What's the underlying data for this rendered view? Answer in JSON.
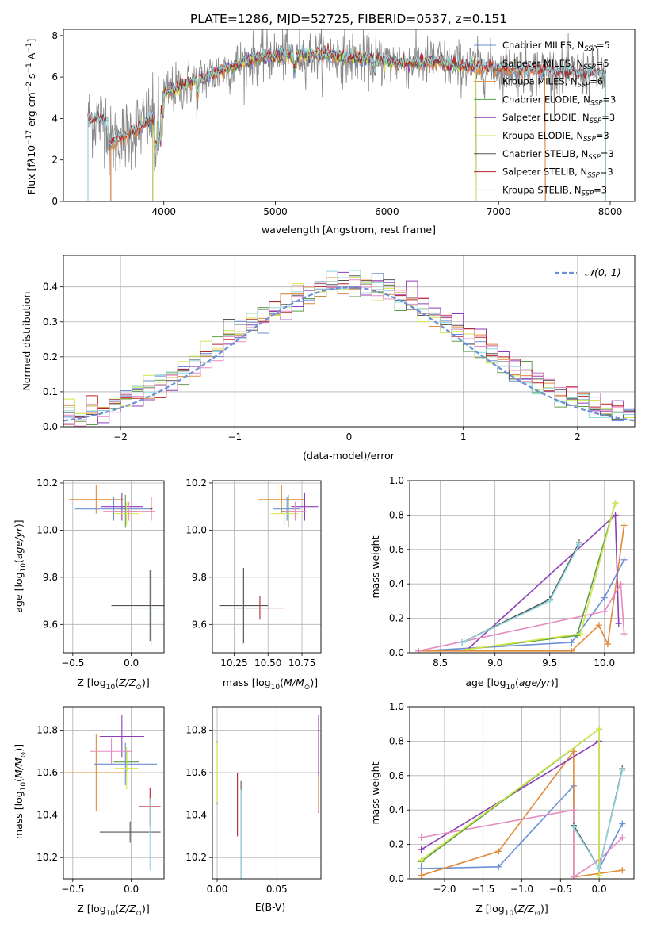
{
  "chart_data": [
    {
      "id": "spectrum",
      "type": "line",
      "title": "PLATE=1286, MJD=52725, FIBERID=0537, z=0.151",
      "xlabel": "wavelength [Angstrom, rest frame]",
      "ylabel": "Flux [f_λ 10^-17 erg cm^-2 s^-1 A^-1]",
      "xlim": [
        3100,
        8220
      ],
      "ylim": [
        0,
        8.3
      ],
      "xticks": [
        4000,
        5000,
        6000,
        7000,
        8000
      ],
      "yticks": [
        0,
        2,
        4,
        6,
        8
      ],
      "legend_position": "right",
      "series": [
        {
          "name": "Chabrier MILES, N_SSP=5",
          "color": "#6b8fd6",
          "start": 3525,
          "end": 7420
        },
        {
          "name": "Salpeter MILES, N_SSP=5",
          "color": "#e6845e",
          "start": 3525,
          "end": 7420
        },
        {
          "name": "Kroupa MILES, N_SSP=6",
          "color": "#e08a3a",
          "start": 3525,
          "end": 7420
        },
        {
          "name": "Chabrier ELODIE, N_SSP=3",
          "color": "#5a9e4a",
          "start": 3900,
          "end": 6800
        },
        {
          "name": "Salpeter ELODIE, N_SSP=3",
          "color": "#8e3fb6",
          "start": 3900,
          "end": 6800
        },
        {
          "name": "Kroupa ELODIE, N_SSP=3",
          "color": "#d2e64c",
          "start": 3900,
          "end": 6800
        },
        {
          "name": "Chabrier STELIB, N_SSP=3",
          "color": "#555555",
          "start": 3320,
          "end": 7960
        },
        {
          "name": "Salpeter STELIB, N_SSP=3",
          "color": "#b8232a",
          "start": 3320,
          "end": 7960
        },
        {
          "name": "Kroupa STELIB, N_SSP=3",
          "color": "#8fd8e0",
          "start": 3320,
          "end": 7960
        }
      ],
      "data_color": "#888888",
      "data_range": [
        3320,
        7960
      ]
    },
    {
      "id": "residuals",
      "type": "area",
      "ylabel": "Normed distribution",
      "xlabel": "(data-model)/error",
      "xlim": [
        -2.5,
        2.5
      ],
      "ylim": [
        0,
        0.49
      ],
      "xticks": [
        -2,
        -1,
        0,
        1,
        2
      ],
      "yticks": [
        0.0,
        0.1,
        0.2,
        0.3,
        0.4
      ],
      "grid": true,
      "legend": "N(0,1)",
      "legend_position": "top-right",
      "bin_width": 0.1,
      "histograms": [
        {
          "color": "#6b8fd6",
          "offset": 0.0
        },
        {
          "color": "#e08a3a",
          "offset": 0.05
        },
        {
          "color": "#5a9e4a",
          "offset": -0.03
        },
        {
          "color": "#8e3fb6",
          "offset": 0.08
        },
        {
          "color": "#d2e64c",
          "offset": -0.06
        },
        {
          "color": "#555555",
          "offset": 0.02
        },
        {
          "color": "#b8232a",
          "offset": 0.04
        },
        {
          "color": "#8fd8e0",
          "offset": -0.02
        },
        {
          "color": "#e68bc0",
          "offset": 0.06
        }
      ]
    },
    {
      "id": "z-age",
      "type": "scatter",
      "xlabel": "Z [log10(Z/Z⊙)]",
      "ylabel": "age  [log10(age/yr)]",
      "xlim": [
        -0.58,
        0.28
      ],
      "ylim": [
        9.48,
        10.21
      ],
      "xticks": [
        -0.5,
        0.0
      ],
      "xtick_labels": [
        "−0.5",
        "0.0"
      ],
      "yticks": [
        9.6,
        9.8,
        10.0,
        10.2
      ],
      "grid": true,
      "points": [
        {
          "x": -0.3,
          "y": 10.13,
          "xerr": 0.23,
          "yerr": 0.06,
          "color": "#e08a3a"
        },
        {
          "x": -0.15,
          "y": 10.09,
          "xerr": 0.33,
          "yerr": 0.05,
          "color": "#6b8fd6"
        },
        {
          "x": -0.08,
          "y": 10.1,
          "xerr": 0.18,
          "yerr": 0.06,
          "color": "#8e3fb6"
        },
        {
          "x": -0.05,
          "y": 10.08,
          "xerr": 0.1,
          "yerr": 0.07,
          "color": "#5a9e4a"
        },
        {
          "x": -0.04,
          "y": 10.07,
          "xerr": 0.11,
          "yerr": 0.05,
          "color": "#d2e64c"
        },
        {
          "x": -0.02,
          "y": 10.08,
          "xerr": 0.22,
          "yerr": 0.04,
          "color": "#e68bc0"
        },
        {
          "x": 0.17,
          "y": 10.09,
          "xerr": 0.01,
          "yerr": 0.05,
          "color": "#b8232a"
        },
        {
          "x": 0.16,
          "y": 9.68,
          "xerr": 0.33,
          "yerr": 0.15,
          "color": "#555555"
        },
        {
          "x": 0.17,
          "y": 9.67,
          "xerr": 0.32,
          "yerr": 0.16,
          "color": "#8fd8e0"
        }
      ]
    },
    {
      "id": "mass-age",
      "type": "scatter",
      "xlabel": "mass [log10(M/M⊙)]",
      "xlim": [
        10.09,
        10.89
      ],
      "ylim": [
        9.48,
        10.21
      ],
      "xticks": [
        10.25,
        10.5,
        10.75
      ],
      "xtick_labels": [
        "10.25",
        "10.50",
        "10.75"
      ],
      "yticks": [
        9.6,
        9.8,
        10.0,
        10.2
      ],
      "grid": true,
      "points": [
        {
          "x": 10.6,
          "y": 10.13,
          "xerr": 0.17,
          "yerr": 0.06,
          "color": "#e08a3a"
        },
        {
          "x": 10.64,
          "y": 10.09,
          "xerr": 0.1,
          "yerr": 0.05,
          "color": "#6b8fd6"
        },
        {
          "x": 10.77,
          "y": 10.1,
          "xerr": 0.1,
          "yerr": 0.06,
          "color": "#8e3fb6"
        },
        {
          "x": 10.65,
          "y": 10.08,
          "xerr": 0.05,
          "yerr": 0.07,
          "color": "#5a9e4a"
        },
        {
          "x": 10.62,
          "y": 10.07,
          "xerr": 0.1,
          "yerr": 0.05,
          "color": "#d2e64c"
        },
        {
          "x": 10.7,
          "y": 10.08,
          "xerr": 0.08,
          "yerr": 0.04,
          "color": "#e68bc0"
        },
        {
          "x": 10.44,
          "y": 9.67,
          "xerr": 0.18,
          "yerr": 0.05,
          "color": "#b8232a"
        },
        {
          "x": 10.32,
          "y": 9.68,
          "xerr": 0.18,
          "yerr": 0.16,
          "color": "#555555"
        },
        {
          "x": 10.31,
          "y": 9.67,
          "xerr": 0.17,
          "yerr": 0.16,
          "color": "#8fd8e0"
        }
      ]
    },
    {
      "id": "age-weight",
      "type": "line",
      "xlabel": "age  [log10(age/yr)]",
      "ylabel": "mass weight",
      "xlim": [
        8.22,
        10.27
      ],
      "ylim": [
        0,
        1.0
      ],
      "xticks": [
        8.5,
        9.0,
        9.5,
        10.0
      ],
      "yticks": [
        0.0,
        0.2,
        0.4,
        0.6,
        0.8,
        1.0
      ],
      "grid": true,
      "series": [
        {
          "color": "#6b8fd6",
          "x": [
            8.3,
            9.7,
            10.0,
            10.18
          ],
          "y": [
            0.01,
            0.06,
            0.32,
            0.54
          ]
        },
        {
          "color": "#e08a3a",
          "x": [
            8.3,
            9.7,
            9.95,
            10.03,
            10.18
          ],
          "y": [
            0.01,
            0.01,
            0.16,
            0.05,
            0.74
          ]
        },
        {
          "color": "#8e3fb6",
          "x": [
            8.75,
            10.1,
            10.13
          ],
          "y": [
            0.02,
            0.8,
            0.17
          ]
        },
        {
          "color": "#e68bc0",
          "x": [
            8.3,
            10.0,
            10.15,
            10.18
          ],
          "y": [
            0.01,
            0.24,
            0.4,
            0.11
          ]
        },
        {
          "color": "#5a9e4a",
          "x": [
            8.75,
            9.75,
            10.1
          ],
          "y": [
            0.02,
            0.1,
            0.87
          ]
        },
        {
          "color": "#d2e64c",
          "x": [
            8.75,
            9.78,
            10.1
          ],
          "y": [
            0.02,
            0.11,
            0.87
          ]
        },
        {
          "color": "#555555",
          "x": [
            8.7,
            9.5,
            9.77
          ],
          "y": [
            0.06,
            0.31,
            0.64
          ]
        },
        {
          "color": "#8fd8e0",
          "x": [
            8.7,
            9.5,
            9.77
          ],
          "y": [
            0.06,
            0.3,
            0.63
          ]
        }
      ]
    },
    {
      "id": "z-mass",
      "type": "scatter",
      "xlabel": "Z [log10(Z/Z⊙)]",
      "ylabel": "mass [log10(M/M⊙)]",
      "xlim": [
        -0.58,
        0.28
      ],
      "ylim": [
        10.1,
        10.91
      ],
      "xticks": [
        -0.5,
        0.0
      ],
      "xtick_labels": [
        "−0.5",
        "0.0"
      ],
      "yticks": [
        10.2,
        10.4,
        10.6,
        10.8
      ],
      "grid": true,
      "points": [
        {
          "x": -0.3,
          "y": 10.6,
          "xerr": 0.26,
          "yerr": 0.18,
          "color": "#e08a3a"
        },
        {
          "x": -0.05,
          "y": 10.64,
          "xerr": 0.27,
          "yerr": 0.1,
          "color": "#6b8fd6"
        },
        {
          "x": -0.08,
          "y": 10.77,
          "xerr": 0.19,
          "yerr": 0.1,
          "color": "#8e3fb6"
        },
        {
          "x": -0.04,
          "y": 10.65,
          "xerr": 0.11,
          "yerr": 0.05,
          "color": "#5a9e4a"
        },
        {
          "x": -0.04,
          "y": 10.62,
          "xerr": 0.1,
          "yerr": 0.1,
          "color": "#d2e64c"
        },
        {
          "x": -0.17,
          "y": 10.7,
          "xerr": 0.18,
          "yerr": 0.06,
          "color": "#e68bc0"
        },
        {
          "x": 0.16,
          "y": 10.44,
          "xerr": 0.09,
          "yerr": 0.09,
          "color": "#b8232a"
        },
        {
          "x": -0.01,
          "y": 10.32,
          "xerr": 0.26,
          "yerr": 0.05,
          "color": "#555555"
        },
        {
          "x": 0.16,
          "y": 10.31,
          "xerr": 0.01,
          "yerr": 0.17,
          "color": "#8fd8e0"
        }
      ]
    },
    {
      "id": "ebv-mass",
      "type": "scatter",
      "xlabel": "E(B-V)",
      "xlim": [
        -0.004,
        0.087
      ],
      "ylim": [
        10.1,
        10.91
      ],
      "xticks": [
        0.0,
        0.05
      ],
      "xtick_labels": [
        "0.00",
        "0.05"
      ],
      "yticks": [
        10.2,
        10.4,
        10.6,
        10.8
      ],
      "grid": true,
      "points": [
        {
          "x": 0.0,
          "y": 10.6,
          "yerr": 0.15,
          "color": "#5a9e4a"
        },
        {
          "x": 0.0,
          "y": 10.6,
          "yerr": 0.14,
          "color": "#d2e64c"
        },
        {
          "x": 0.017,
          "y": 10.45,
          "yerr": 0.15,
          "color": "#b8232a"
        },
        {
          "x": 0.02,
          "y": 10.3,
          "yerr": 0.26,
          "color": "#555555"
        },
        {
          "x": 0.02,
          "y": 10.3,
          "yerr": 0.22,
          "color": "#8fd8e0"
        },
        {
          "x": 0.085,
          "y": 10.64,
          "yerr": 0.23,
          "color": "#8e3fb6"
        },
        {
          "x": 0.085,
          "y": 10.5,
          "yerr": 0.08,
          "color": "#e08a3a"
        }
      ]
    },
    {
      "id": "z-weight",
      "type": "line",
      "xlabel": "Z [log10(Z/Z⊙)]",
      "ylabel": "mass weight",
      "xlim": [
        -2.45,
        0.45
      ],
      "ylim": [
        0,
        1.0
      ],
      "xticks": [
        -2.0,
        -1.5,
        -1.0,
        -0.5,
        0.0
      ],
      "xtick_labels": [
        "−2.0",
        "−1.5",
        "−1.0",
        "−0.5",
        "0.0"
      ],
      "yticks": [
        0.0,
        0.2,
        0.4,
        0.6,
        0.8,
        1.0
      ],
      "grid": true,
      "series": [
        {
          "color": "#6b8fd6",
          "x": [
            -2.3,
            -1.3,
            -0.33,
            -0.33,
            0.0,
            0.3
          ],
          "y": [
            0.06,
            0.07,
            0.54,
            0.31,
            0.06,
            0.32
          ]
        },
        {
          "color": "#e08a3a",
          "x": [
            -2.3,
            -1.3,
            -0.33,
            -0.33,
            0.3
          ],
          "y": [
            0.02,
            0.16,
            0.74,
            0.01,
            0.05
          ]
        },
        {
          "color": "#8e3fb6",
          "x": [
            -2.3,
            0.0
          ],
          "y": [
            0.17,
            0.8
          ]
        },
        {
          "color": "#e68bc0",
          "x": [
            -2.3,
            -0.33,
            -0.33,
            0.0,
            0.3
          ],
          "y": [
            0.24,
            0.4,
            0.01,
            0.11,
            0.24
          ]
        },
        {
          "color": "#5a9e4a",
          "x": [
            -2.3,
            0.0,
            0.0
          ],
          "y": [
            0.1,
            0.87,
            0.02
          ]
        },
        {
          "color": "#d2e64c",
          "x": [
            -2.3,
            0.0,
            0.0
          ],
          "y": [
            0.11,
            0.87,
            0.02
          ]
        },
        {
          "color": "#555555",
          "x": [
            -0.33,
            0.0,
            0.3
          ],
          "y": [
            0.31,
            0.06,
            0.64
          ]
        },
        {
          "color": "#8fd8e0",
          "x": [
            -0.33,
            0.0,
            0.3
          ],
          "y": [
            0.3,
            0.06,
            0.63
          ]
        }
      ]
    }
  ]
}
